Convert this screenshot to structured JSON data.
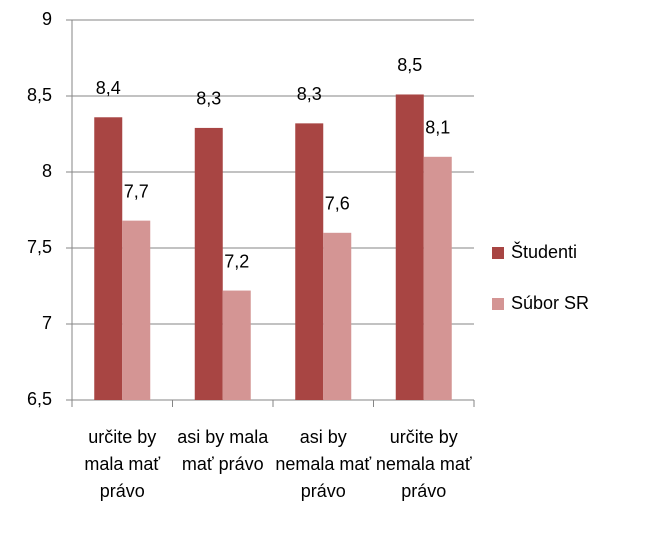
{
  "chart_data": {
    "type": "bar",
    "categories": [
      "určite by mala mať právo",
      "asi by mala mať právo",
      "asi by nemala mať právo",
      "určite by nemala mať právo"
    ],
    "series": [
      {
        "name": "Študenti",
        "color": "#a84543",
        "values": [
          8.36,
          8.29,
          8.32,
          8.51
        ],
        "value_labels": [
          "8,4",
          "8,3",
          "8,3",
          "8,5"
        ]
      },
      {
        "name": "Súbor SR",
        "color": "#d49594",
        "values": [
          7.68,
          7.22,
          7.6,
          8.1
        ],
        "value_labels": [
          "7,7",
          "7,2",
          "7,6",
          "8,1"
        ]
      }
    ],
    "ylim": [
      6.5,
      9
    ],
    "yticks": [
      {
        "value": 6.5,
        "label": "6,5"
      },
      7,
      {
        "value": 7.5,
        "label": "7,5"
      },
      8,
      {
        "value": 8.5,
        "label": "8,5"
      },
      9
    ],
    "grid": true,
    "legend": "right"
  }
}
